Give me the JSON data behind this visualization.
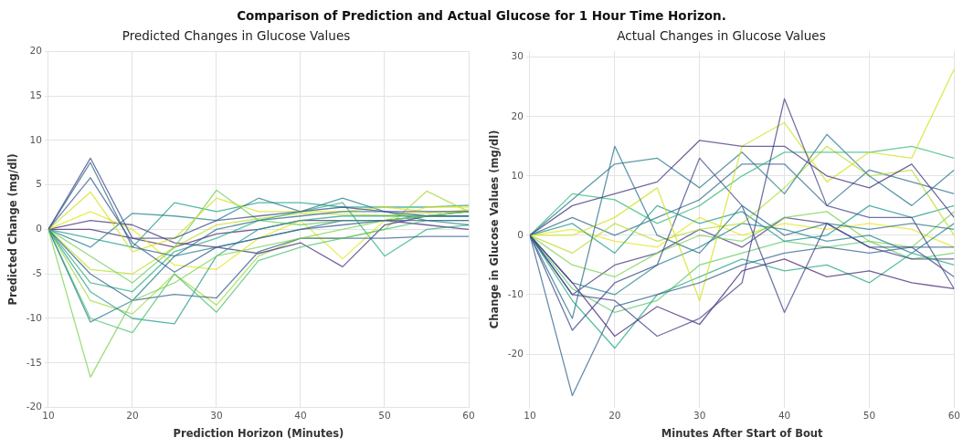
{
  "chart_data": [
    {
      "type": "line",
      "title": "Predicted Changes in Glucose Values",
      "xlabel": "Prediction Horizon (Minutes)",
      "ylabel": "Predicted Change (mg/dl)",
      "annotations": [
        "Comparison of Prediction and Actual Glucose for 1 Hour Time Horizon."
      ],
      "x": [
        10,
        15,
        20,
        25,
        30,
        35,
        40,
        45,
        50,
        55,
        60
      ],
      "xlim": [
        10,
        60
      ],
      "xticks": [
        10,
        20,
        30,
        40,
        50,
        60
      ],
      "ylim": [
        -20,
        20
      ],
      "yticks": [
        -20,
        -15,
        -10,
        -5,
        0,
        5,
        10,
        15,
        20
      ],
      "grid": true,
      "marker": "none",
      "series": [
        {
          "color": "#3e4989",
          "values": [
            0,
            8,
            -1,
            -1,
            1,
            1.5,
            2,
            2.5,
            2,
            2,
            2
          ]
        },
        {
          "color": "#31688e",
          "values": [
            0,
            7.5,
            -2,
            -3,
            0,
            1,
            1.5,
            2,
            2,
            1.5,
            1.5
          ]
        },
        {
          "color": "#365c8d",
          "values": [
            0,
            5.8,
            -1.5,
            -4.8,
            -2,
            -1,
            0,
            0.5,
            1,
            1,
            1
          ]
        },
        {
          "color": "#d2e21b",
          "values": [
            0,
            4.2,
            -2.5,
            -1,
            3.5,
            2,
            2,
            2,
            2.5,
            2,
            2
          ]
        },
        {
          "color": "#7ad151",
          "values": [
            0,
            -16.6,
            -8,
            -6,
            -3,
            -2,
            -1,
            0,
            1,
            1.5,
            2
          ]
        },
        {
          "color": "#277f8e",
          "values": [
            0,
            -10.4,
            -8,
            -3,
            -2,
            -1,
            0,
            1,
            1,
            1.5,
            1.5
          ]
        },
        {
          "color": "#4ac16d",
          "values": [
            0,
            -10,
            -11.6,
            -5,
            -9.3,
            -3.5,
            -2,
            -1,
            0,
            1,
            1
          ]
        },
        {
          "color": "#2a9d8f",
          "values": [
            0,
            -7,
            -10,
            -10.6,
            -3,
            0,
            1,
            1.5,
            1.5,
            1.5,
            1.5
          ]
        },
        {
          "color": "#365c8d",
          "values": [
            0,
            -5,
            -8,
            -7.3,
            -7.7,
            -2.5,
            -1,
            -1,
            -1,
            -0.8,
            -0.8
          ]
        },
        {
          "color": "#6ece58",
          "values": [
            0,
            -3,
            -6,
            -2,
            4.4,
            1,
            0.5,
            1,
            1,
            1.5,
            2
          ]
        },
        {
          "color": "#e5e419",
          "values": [
            0,
            2,
            0,
            -4,
            -4.5,
            -1,
            1,
            -3.3,
            1,
            2.5,
            2.5
          ]
        },
        {
          "color": "#46337e",
          "values": [
            0,
            1,
            0.5,
            -1.5,
            -2,
            -2.7,
            -1.5,
            -4.2,
            0.5,
            1.5,
            2
          ]
        },
        {
          "color": "#277f8e",
          "values": [
            0,
            -2,
            1.8,
            1.5,
            1,
            3.5,
            2,
            3.5,
            2,
            1,
            0.5
          ]
        },
        {
          "color": "#a0da39",
          "values": [
            0,
            -8,
            -9.5,
            -5,
            -8.5,
            -3,
            -1,
            -1,
            0,
            4.3,
            2
          ]
        },
        {
          "color": "#2ab07f",
          "values": [
            0,
            -6,
            -7,
            -2.5,
            -1,
            1,
            2,
            3,
            -3,
            0,
            0.5
          ]
        },
        {
          "color": "#1f9e89",
          "values": [
            0,
            -1,
            -2,
            3,
            2,
            3,
            3,
            2.5,
            2.5,
            2.5,
            2.7
          ]
        },
        {
          "color": "#bddf26",
          "values": [
            0,
            -4.5,
            -5,
            -2,
            0.5,
            1.2,
            1.8,
            1.7,
            1.6,
            1.8,
            2.2
          ]
        },
        {
          "color": "#482878",
          "values": [
            0,
            0,
            -1,
            -2,
            -0.5,
            0,
            1,
            1,
            1,
            0.5,
            0
          ]
        }
      ]
    },
    {
      "type": "line",
      "title": "Actual Changes in Glucose Values",
      "xlabel": "Minutes After Start of Bout",
      "ylabel": "Change in Glucose Values (mg/dl)",
      "x": [
        10,
        15,
        20,
        25,
        30,
        35,
        40,
        45,
        50,
        55,
        60
      ],
      "xlim": [
        10,
        60
      ],
      "xticks": [
        10,
        20,
        30,
        40,
        50,
        60
      ],
      "ylim": [
        -29,
        31
      ],
      "yticks": [
        -20,
        -10,
        0,
        10,
        20,
        30
      ],
      "grid": true,
      "marker": "none",
      "series": [
        {
          "color": "#33638d",
          "values": [
            0,
            -27,
            -12,
            -10,
            -8,
            -5,
            -3,
            -2,
            -3,
            -2,
            -2
          ]
        },
        {
          "color": "#2d708e",
          "values": [
            0,
            -14,
            15,
            0,
            -3,
            5,
            0,
            2,
            1,
            2,
            1
          ]
        },
        {
          "color": "#46337e",
          "values": [
            0,
            5,
            7,
            9,
            16,
            15,
            15,
            10,
            8,
            12,
            3
          ]
        },
        {
          "color": "#414487",
          "values": [
            0,
            -10,
            -11,
            -17,
            -14,
            -8,
            23,
            5,
            3,
            3,
            -9
          ]
        },
        {
          "color": "#d2e21b",
          "values": [
            0,
            0,
            3,
            8,
            -11,
            15,
            19,
            9,
            14,
            13,
            28
          ]
        },
        {
          "color": "#35b779",
          "values": [
            0,
            7,
            6,
            2,
            5,
            10,
            14,
            14,
            14,
            15,
            13
          ]
        },
        {
          "color": "#3e4989",
          "values": [
            0,
            -16,
            -8,
            -5,
            13,
            5,
            -13,
            2,
            -2,
            -2,
            -7
          ]
        },
        {
          "color": "#482878",
          "values": [
            0,
            -8,
            -17,
            -12,
            -15,
            -6,
            -4,
            -7,
            -6,
            -8,
            -9
          ]
        },
        {
          "color": "#2a788e",
          "values": [
            0,
            6,
            12,
            13,
            8,
            14,
            7,
            17,
            10,
            5,
            11
          ]
        },
        {
          "color": "#22a884",
          "values": [
            0,
            -11,
            -19,
            -10,
            -7,
            -4,
            -6,
            -5,
            -8,
            -3,
            -5
          ]
        },
        {
          "color": "#b5de2b",
          "values": [
            0,
            -3,
            2,
            -1,
            1,
            2,
            8,
            15,
            10,
            11,
            0
          ]
        },
        {
          "color": "#1f988b",
          "values": [
            0,
            2,
            -3,
            5,
            2,
            4,
            -1,
            0,
            5,
            3,
            5
          ]
        },
        {
          "color": "#26828e",
          "values": [
            0,
            -8,
            -10,
            -5,
            -2,
            2,
            1,
            -1,
            0,
            -3,
            2
          ]
        },
        {
          "color": "#7ad151",
          "values": [
            0,
            -5,
            -7,
            -3,
            0,
            -1,
            3,
            4,
            -1,
            -2,
            4
          ]
        },
        {
          "color": "#e5e419",
          "values": [
            0,
            1,
            -1,
            -2,
            3,
            0,
            2,
            1,
            2,
            1,
            -2
          ]
        },
        {
          "color": "#443983",
          "values": [
            0,
            -10,
            -5,
            -3,
            1,
            -2,
            3,
            2,
            -2,
            -4,
            -4
          ]
        },
        {
          "color": "#31688e",
          "values": [
            0,
            3,
            0,
            3,
            6,
            12,
            12,
            5,
            11,
            9,
            7
          ]
        },
        {
          "color": "#5ec962",
          "values": [
            0,
            -9,
            -13,
            -11,
            -5,
            -3,
            -1,
            -2,
            -1,
            -4,
            -3
          ]
        }
      ]
    }
  ]
}
